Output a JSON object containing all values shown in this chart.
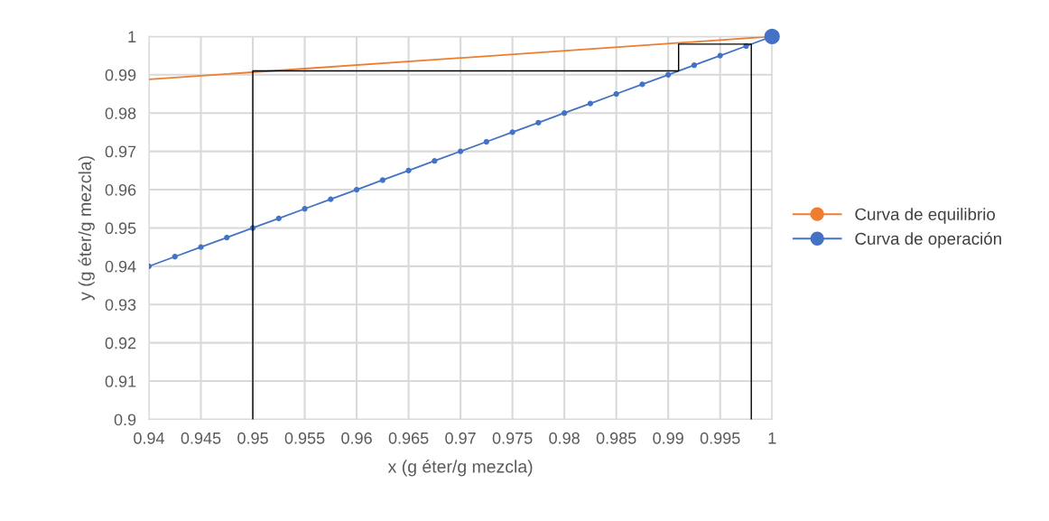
{
  "chart_data": {
    "type": "line",
    "xlabel": "x (g éter/g mezcla)",
    "ylabel": "y (g éter/g mezcla)",
    "xlim": [
      0.94,
      1
    ],
    "xticks": [
      0.94,
      0.945,
      0.95,
      0.955,
      0.96,
      0.965,
      0.97,
      0.975,
      0.98,
      0.985,
      0.99,
      0.995,
      1
    ],
    "ylim": [
      0.9,
      1
    ],
    "yticks": [
      0.9,
      0.91,
      0.92,
      0.93,
      0.94,
      0.95,
      0.96,
      0.97,
      0.98,
      0.99,
      1
    ],
    "grid": true,
    "legend": "right",
    "series": [
      {
        "name": "Curva de equilibrio",
        "color": "#ed7d31",
        "marker": "none",
        "x": [
          0.94,
          1
        ],
        "values": [
          0.9888,
          1
        ]
      },
      {
        "name": "Curva de operación",
        "color": "#4472c4",
        "marker": "circle",
        "x": [
          0.94,
          0.9425,
          0.945,
          0.9475,
          0.95,
          0.9525,
          0.955,
          0.9575,
          0.96,
          0.9625,
          0.965,
          0.9675,
          0.97,
          0.9725,
          0.975,
          0.9775,
          0.98,
          0.9825,
          0.985,
          0.9875,
          0.99,
          0.9925,
          0.995,
          0.9975,
          1
        ],
        "values": [
          0.94,
          0.9425,
          0.945,
          0.9475,
          0.95,
          0.9525,
          0.955,
          0.9575,
          0.96,
          0.9625,
          0.965,
          0.9675,
          0.97,
          0.9725,
          0.975,
          0.9775,
          0.98,
          0.9825,
          0.985,
          0.9875,
          0.99,
          0.9925,
          0.995,
          0.9975,
          1
        ]
      },
      {
        "type": "scatter",
        "color": "#4472c4",
        "marker": "circle",
        "x": [
          1
        ],
        "values": [
          1
        ]
      },
      {
        "color": "#000000",
        "marker": "none",
        "x": [
          0.95,
          0.95,
          0.991,
          0.991,
          0.998,
          0.998
        ],
        "values": [
          0.9,
          0.991,
          0.991,
          0.998,
          0.998,
          0.9
        ]
      }
    ]
  }
}
